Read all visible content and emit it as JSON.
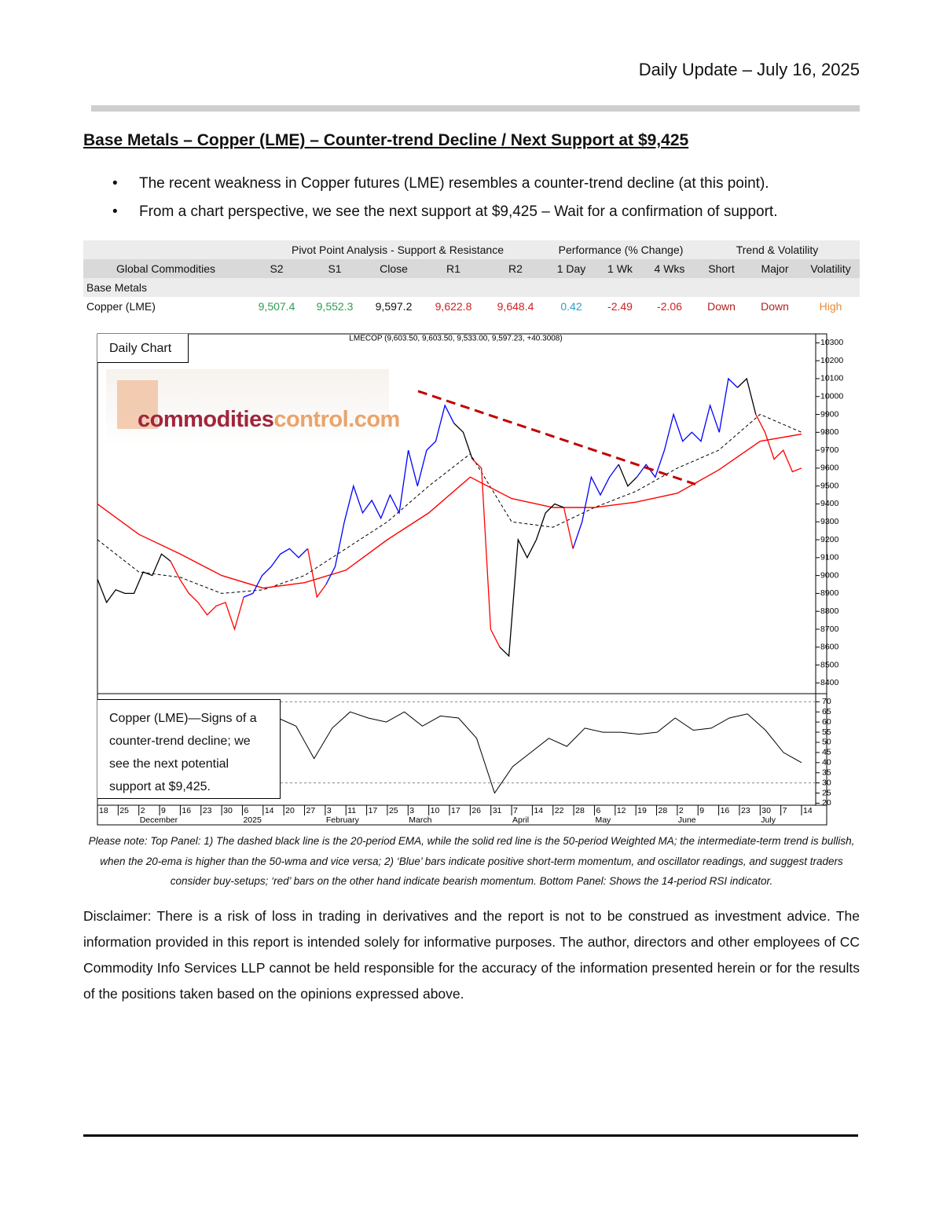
{
  "header": {
    "date": "Daily Update – July 16, 2025"
  },
  "title": "Base Metals – Copper (LME) – Counter-trend Decline / Next Support at $9,425",
  "bullets": [
    "The recent weakness in Copper futures (LME) resembles a counter-trend decline (at this point).",
    "From a chart perspective, we see the next support at $9,425 – Wait for a confirmation of support."
  ],
  "table": {
    "group_headers": [
      "Pivot Point Analysis - Support & Resistance",
      "Performance (% Change)",
      "Trend & Volatility"
    ],
    "columns": [
      "Global Commodities",
      "S2",
      "S1",
      "Close",
      "R1",
      "R2",
      "1 Day",
      "1 Wk",
      "4 Wks",
      "Short",
      "Major",
      "Volatility"
    ],
    "section": "Base Metals",
    "rows": [
      [
        "Copper (LME)",
        "9,507.4",
        "9,552.3",
        "9,597.2",
        "9,622.8",
        "9,648.4",
        "0.42",
        "-2.49",
        "-2.06",
        "Down",
        "Down",
        "High"
      ]
    ]
  },
  "chart": {
    "type": "line",
    "label": "Daily Chart",
    "watermark": [
      "commodities",
      "control.com"
    ],
    "header": "LMECOP (9,603.50, 9,603.50, 9,533.00, 9,597.23, +40.3008)",
    "ylim": [
      8340,
      10350
    ],
    "yticks": [
      8400,
      8500,
      8600,
      8700,
      8800,
      8900,
      9000,
      9100,
      9200,
      9300,
      9400,
      9500,
      9600,
      9700,
      9800,
      9900,
      10000,
      10100,
      10200,
      10300
    ],
    "price": {
      "values": [
        8980,
        8850,
        8920,
        8900,
        8900,
        9020,
        9000,
        9120,
        9080,
        8980,
        8900,
        8850,
        8780,
        8830,
        8850,
        8700,
        8880,
        8900,
        9000,
        9050,
        9120,
        9150,
        9100,
        9150,
        8880,
        8950,
        9050,
        9300,
        9500,
        9350,
        9420,
        9320,
        9450,
        9350,
        9700,
        9500,
        9700,
        9750,
        9950,
        9850,
        9800,
        9650,
        9600,
        8700,
        8600,
        8550,
        9200,
        9100,
        9200,
        9350,
        9400,
        9380,
        9150,
        9300,
        9550,
        9450,
        9550,
        9620,
        9500,
        9550,
        9620,
        9550,
        9700,
        9900,
        9750,
        9800,
        9750,
        9950,
        9800,
        10100,
        10050,
        10100,
        9900,
        9800,
        9650,
        9700,
        9580,
        9600
      ],
      "colors": [
        "#000",
        "#000",
        "#000",
        "#000",
        "#000",
        "#000",
        "#000",
        "#000",
        "#000",
        "#f00",
        "#f00",
        "#f00",
        "#f00",
        "#f00",
        "#f00",
        "#f00",
        "#f00",
        "#00f",
        "#00f",
        "#00f",
        "#00f",
        "#00f",
        "#00f",
        "#00f",
        "#f00",
        "#f00",
        "#00f",
        "#00f",
        "#00f",
        "#00f",
        "#00f",
        "#00f",
        "#00f",
        "#00f",
        "#00f",
        "#00f",
        "#00f",
        "#00f",
        "#00f",
        "#00f",
        "#000",
        "#000",
        "#f00",
        "#f00",
        "#f00",
        "#000",
        "#000",
        "#000",
        "#000",
        "#000",
        "#000",
        "#000",
        "#f00",
        "#00f",
        "#00f",
        "#00f",
        "#00f",
        "#00f",
        "#000",
        "#000",
        "#00f",
        "#00f",
        "#00f",
        "#00f",
        "#00f",
        "#00f",
        "#00f",
        "#00f",
        "#00f",
        "#00f",
        "#00f",
        "#000",
        "#000",
        "#f00",
        "#f00",
        "#f00",
        "#f00",
        "#f00"
      ]
    },
    "ema": {
      "values": [
        9200,
        9020,
        8990,
        8900,
        8920,
        9000,
        9150,
        9300,
        9500,
        9680,
        9300,
        9270,
        9380,
        9470,
        9600,
        9700,
        9900,
        9800
      ],
      "color": "#000000",
      "dashed": true
    },
    "wma": {
      "values": [
        9400,
        9230,
        9120,
        9000,
        8930,
        8960,
        9030,
        9200,
        9350,
        9550,
        9430,
        9380,
        9380,
        9410,
        9460,
        9590,
        9750,
        9790
      ],
      "color": "#ff0000",
      "dashed": false
    },
    "trendline": {
      "values": [
        10030,
        9510
      ],
      "color": "#c00000"
    },
    "rsi": {
      "ylim": [
        19,
        74
      ],
      "yticks": [
        20,
        25,
        30,
        35,
        40,
        45,
        50,
        55,
        60,
        65,
        70
      ],
      "levels": [
        70,
        30
      ],
      "values": [
        null,
        null,
        null,
        null,
        null,
        null,
        null,
        null,
        null,
        null,
        62,
        58,
        42,
        57,
        65,
        62,
        60,
        65,
        58,
        63,
        62,
        52,
        25,
        38,
        45,
        52,
        48,
        57,
        55,
        55,
        54,
        55,
        62,
        56,
        57,
        62,
        64,
        56,
        45,
        40
      ],
      "note": "Copper (LME)—Signs of a counter-trend decline; we see the next potential support at $9,425."
    },
    "x_axis": [
      {
        "day": "18"
      },
      {
        "day": "25"
      },
      {
        "day": "2",
        "month": "December"
      },
      {
        "day": "9"
      },
      {
        "day": "16"
      },
      {
        "day": "23"
      },
      {
        "day": "30"
      },
      {
        "day": "6",
        "month": "2025"
      },
      {
        "day": "14"
      },
      {
        "day": "20"
      },
      {
        "day": "27"
      },
      {
        "day": "3",
        "month": "February"
      },
      {
        "day": "11"
      },
      {
        "day": "17"
      },
      {
        "day": "25"
      },
      {
        "day": "3",
        "month": "March"
      },
      {
        "day": "10"
      },
      {
        "day": "17"
      },
      {
        "day": "26"
      },
      {
        "day": "31"
      },
      {
        "day": "7",
        "month": "April"
      },
      {
        "day": "14"
      },
      {
        "day": "22"
      },
      {
        "day": "28"
      },
      {
        "day": "6",
        "month": "May"
      },
      {
        "day": "12"
      },
      {
        "day": "19"
      },
      {
        "day": "28"
      },
      {
        "day": "2",
        "month": "June"
      },
      {
        "day": "9"
      },
      {
        "day": "16"
      },
      {
        "day": "23"
      },
      {
        "day": "30",
        "month": "July"
      },
      {
        "day": "7"
      },
      {
        "day": "14"
      }
    ]
  },
  "note": "Please note: Top Panel: 1) The dashed black line is the 20-period EMA, while the solid red line is the 50-period Weighted MA; the intermediate-term trend is bullish, when the 20-ema is higher than the 50-wma and vice versa; 2)  ‘Blue’  bars indicate positive short-term momentum, and oscillator readings, and suggest traders consider buy-setups;  ‘red’  bars on the other hand indicate bearish momentum. Bottom Panel: Shows the 14-period RSI indicator.",
  "disclaimer": "Disclaimer: There is a risk of loss in trading in derivatives and the report is not to be construed as investment advice. The information provided in this report is intended solely for informative purposes. The author, directors and other employees of CC Commodity Info Services LLP cannot be held responsible for the accuracy of the information presented herein or for the results of the positions taken based on the opinions expressed above."
}
